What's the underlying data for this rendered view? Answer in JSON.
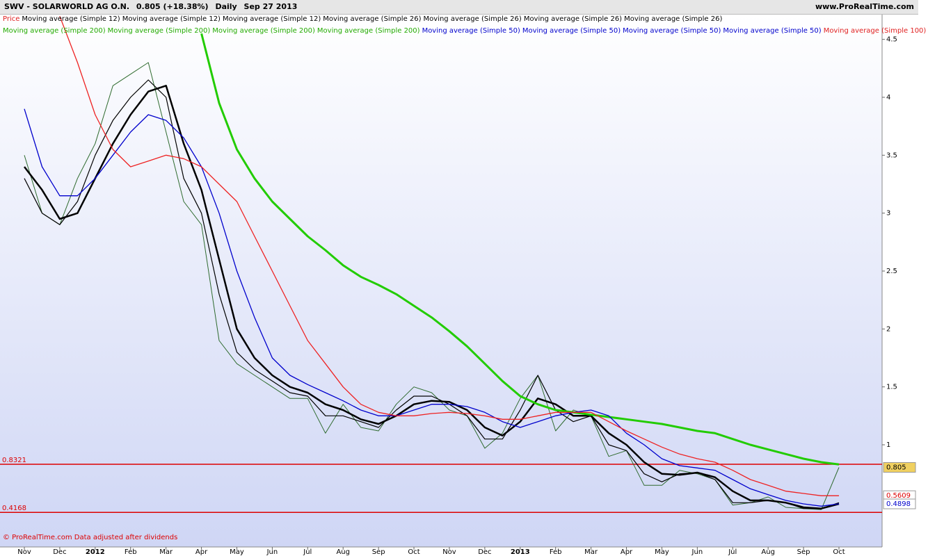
{
  "header": {
    "symbol": "SWV - SOLARWORLD AG O.N.",
    "quote": "0.805 (+18.38%)",
    "period": "Daily",
    "date": "Sep 27 2013",
    "site": "www.ProRealTime.com"
  },
  "legend_rows": [
    [
      {
        "text": "Price",
        "color": "#e02020"
      },
      {
        "text": "Moving average (Simple 12)",
        "color": "#000000"
      },
      {
        "text": "Moving average (Simple 12)",
        "color": "#000000"
      },
      {
        "text": "Moving average (Simple 12)",
        "color": "#000000"
      },
      {
        "text": "Moving average (Simple 26)",
        "color": "#000000"
      },
      {
        "text": "Moving average (Simple 26)",
        "color": "#000000"
      },
      {
        "text": "Moving average (Simple 26)",
        "color": "#000000"
      },
      {
        "text": "Moving average (Simple 26)",
        "color": "#000000"
      }
    ],
    [
      {
        "text": "Moving average (Simple 200)",
        "color": "#22aa00"
      },
      {
        "text": "Moving average (Simple 200)",
        "color": "#22aa00"
      },
      {
        "text": "Moving average (Simple 200)",
        "color": "#22aa00"
      },
      {
        "text": "Moving average (Simple 200)",
        "color": "#22aa00"
      },
      {
        "text": "Moving average (Simple 50)",
        "color": "#0000cc"
      },
      {
        "text": "Moving average (Simple 50)",
        "color": "#0000cc"
      },
      {
        "text": "Moving average (Simple 50)",
        "color": "#0000cc"
      },
      {
        "text": "Moving average (Simple 50)",
        "color": "#0000cc"
      },
      {
        "text": "Moving average (Simple 100)",
        "color": "#e02020"
      }
    ]
  ],
  "footer": "© ProRealTime.com Data adjusted after dividends",
  "chart_data": {
    "type": "line",
    "categories": [
      "Nov",
      null,
      "Dec",
      null,
      "2012",
      null,
      "Feb",
      null,
      "Mar",
      null,
      "Apr",
      null,
      "May",
      null,
      "Jun",
      null,
      "Jul",
      null,
      "Aug",
      null,
      "Sep",
      null,
      "Oct",
      null,
      "Nov",
      null,
      "Dec",
      null,
      "2013",
      null,
      "Feb",
      null,
      "Mar",
      null,
      "Apr",
      null,
      "May",
      null,
      "Jun",
      null,
      "Jul",
      null,
      "Aug",
      null,
      "Sep",
      null,
      "Oct"
    ],
    "ylim": [
      0.1,
      4.84
    ],
    "yticks": [
      1,
      1.5,
      2,
      2.5,
      3,
      3.5,
      4,
      4.5
    ],
    "series": [
      {
        "color": "#2f6b2f",
        "width": 1,
        "values": [
          3.5,
          3.0,
          2.9,
          3.3,
          3.6,
          4.1,
          4.2,
          4.3,
          3.7,
          3.1,
          2.9,
          1.9,
          1.7,
          1.6,
          1.5,
          1.4,
          1.4,
          1.1,
          1.35,
          1.15,
          1.12,
          1.35,
          1.5,
          1.45,
          1.3,
          1.25,
          0.97,
          1.1,
          1.4,
          1.6,
          1.12,
          1.3,
          1.25,
          0.9,
          0.95,
          0.65,
          0.65,
          0.78,
          0.75,
          0.7,
          0.48,
          0.5,
          0.55,
          0.46,
          0.45,
          0.44,
          0.805
        ]
      },
      {
        "color": "#000000",
        "width": 1.2,
        "values": [
          3.3,
          3.0,
          2.9,
          3.1,
          3.5,
          3.8,
          4.0,
          4.15,
          4.0,
          3.3,
          3.0,
          2.3,
          1.8,
          1.65,
          1.55,
          1.45,
          1.42,
          1.25,
          1.25,
          1.2,
          1.15,
          1.3,
          1.42,
          1.42,
          1.35,
          1.25,
          1.05,
          1.05,
          1.3,
          1.6,
          1.3,
          1.2,
          1.25,
          1.0,
          0.95,
          0.75,
          0.68,
          0.75,
          0.76,
          0.7,
          0.5,
          0.5,
          0.52,
          0.5,
          0.45,
          0.45,
          0.5
        ]
      },
      {
        "color": "#000000",
        "width": 2.5,
        "values": [
          3.4,
          3.2,
          2.95,
          3.0,
          3.3,
          3.6,
          3.85,
          4.05,
          4.1,
          3.6,
          3.2,
          2.6,
          2.0,
          1.75,
          1.6,
          1.5,
          1.45,
          1.35,
          1.3,
          1.22,
          1.18,
          1.25,
          1.35,
          1.38,
          1.37,
          1.3,
          1.15,
          1.08,
          1.2,
          1.4,
          1.35,
          1.25,
          1.25,
          1.1,
          1.0,
          0.85,
          0.75,
          0.74,
          0.76,
          0.72,
          0.6,
          0.52,
          0.52,
          0.5,
          0.46,
          0.45,
          0.49
        ]
      },
      {
        "color": "#22cc00",
        "width": 3,
        "values": [
          null,
          null,
          null,
          null,
          null,
          null,
          null,
          null,
          null,
          null,
          4.55,
          3.95,
          3.55,
          3.3,
          3.1,
          2.95,
          2.8,
          2.68,
          2.55,
          2.45,
          2.38,
          2.3,
          2.2,
          2.1,
          1.98,
          1.85,
          1.7,
          1.55,
          1.42,
          1.35,
          1.3,
          1.28,
          1.26,
          1.24,
          1.22,
          1.2,
          1.18,
          1.15,
          1.12,
          1.1,
          1.05,
          1.0,
          0.96,
          0.92,
          0.88,
          0.85,
          0.83
        ]
      },
      {
        "color": "#0000cc",
        "width": 1.3,
        "values": [
          3.9,
          3.4,
          3.15,
          3.15,
          3.3,
          3.5,
          3.7,
          3.85,
          3.8,
          3.65,
          3.4,
          3.0,
          2.5,
          2.1,
          1.75,
          1.6,
          1.52,
          1.45,
          1.38,
          1.3,
          1.25,
          1.25,
          1.3,
          1.35,
          1.35,
          1.33,
          1.28,
          1.2,
          1.15,
          1.2,
          1.25,
          1.28,
          1.3,
          1.25,
          1.1,
          1.0,
          0.88,
          0.82,
          0.8,
          0.78,
          0.7,
          0.62,
          0.57,
          0.52,
          0.49,
          0.47,
          0.49
        ]
      },
      {
        "color": "#ee2222",
        "width": 1.3,
        "values": [
          null,
          null,
          4.7,
          4.3,
          3.85,
          3.55,
          3.4,
          3.45,
          3.5,
          3.47,
          3.4,
          3.25,
          3.1,
          2.8,
          2.5,
          2.2,
          1.9,
          1.7,
          1.5,
          1.35,
          1.28,
          1.25,
          1.25,
          1.27,
          1.28,
          1.27,
          1.25,
          1.22,
          1.22,
          1.25,
          1.28,
          1.28,
          1.28,
          1.2,
          1.12,
          1.05,
          0.98,
          0.92,
          0.88,
          0.85,
          0.78,
          0.7,
          0.65,
          0.6,
          0.58,
          0.56,
          0.56
        ]
      }
    ],
    "levels": [
      0.8321,
      0.4168
    ],
    "level_color": "#dd0000",
    "value_tags": [
      {
        "value": 0.805,
        "color": "#000000",
        "bg": "#f0d060"
      },
      {
        "value": 0.5609,
        "color": "#dd0000",
        "bg": "#ffffff"
      },
      {
        "value": 0.4898,
        "color": "#0000cc",
        "bg": "#ffffff"
      }
    ]
  }
}
